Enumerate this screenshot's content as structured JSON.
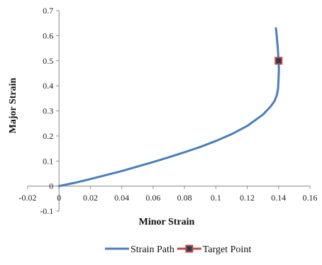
{
  "chart_data": {
    "type": "line",
    "title": "",
    "xlabel": "Minor Strain",
    "ylabel": "Major Strain",
    "xlim": [
      -0.02,
      0.16
    ],
    "ylim": [
      -0.1,
      0.7
    ],
    "x_ticks": [
      "-0.02",
      "0",
      "0.02",
      "0.04",
      "0.06",
      "0.08",
      "0.1",
      "0.12",
      "0.14",
      "0.16"
    ],
    "y_ticks": [
      "-0.1",
      "0",
      "0.1",
      "0.2",
      "0.3",
      "0.4",
      "0.5",
      "0.6",
      "0.7"
    ],
    "grid": false,
    "legend_position": "bottom",
    "series": [
      {
        "name": "Strain Path",
        "color": "#4a7ebb",
        "marker": "none",
        "points": [
          [
            0.0,
            0.0
          ],
          [
            0.01,
            0.013
          ],
          [
            0.02,
            0.028
          ],
          [
            0.03,
            0.044
          ],
          [
            0.04,
            0.06
          ],
          [
            0.05,
            0.078
          ],
          [
            0.06,
            0.096
          ],
          [
            0.07,
            0.115
          ],
          [
            0.08,
            0.135
          ],
          [
            0.09,
            0.156
          ],
          [
            0.1,
            0.18
          ],
          [
            0.11,
            0.207
          ],
          [
            0.12,
            0.24
          ],
          [
            0.13,
            0.285
          ],
          [
            0.135,
            0.318
          ],
          [
            0.1375,
            0.34
          ],
          [
            0.139,
            0.365
          ],
          [
            0.1397,
            0.39
          ],
          [
            0.14,
            0.43
          ],
          [
            0.1402,
            0.47
          ],
          [
            0.14,
            0.5
          ],
          [
            0.1395,
            0.55
          ],
          [
            0.1388,
            0.6
          ],
          [
            0.1383,
            0.63
          ]
        ]
      },
      {
        "name": "Target Point",
        "color": "#be4b48",
        "marker": "square",
        "marker_fill": "#2b3a55",
        "points": [
          [
            0.14,
            0.5
          ]
        ]
      }
    ]
  }
}
